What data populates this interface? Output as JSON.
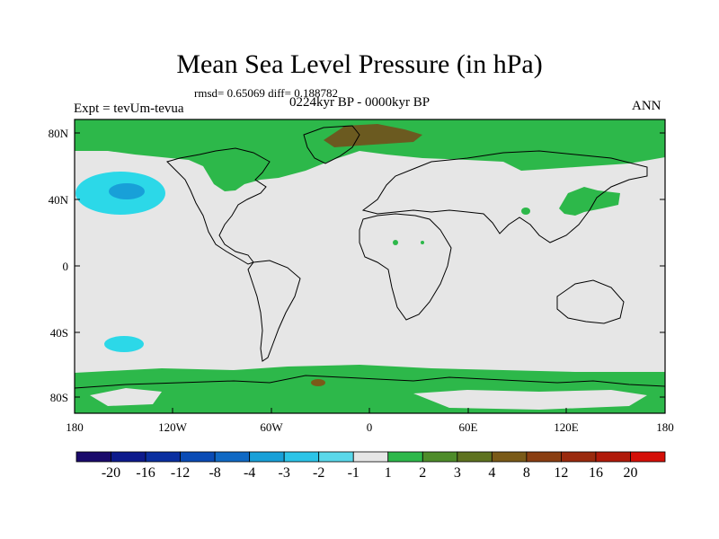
{
  "title": "Mean Sea Level Pressure (in hPa)",
  "stats": "rmsd= 0.65069 diff= 0.188782",
  "period": "0224kyr BP - 0000kyr BP",
  "experiment": "Expt = tevUm-tevua",
  "season": "ANN",
  "lat_ticks": [
    "80N",
    "40N",
    "0",
    "40S",
    "80S"
  ],
  "lon_ticks": [
    "180",
    "120W",
    "60W",
    "0",
    "60E",
    "120E",
    "180"
  ],
  "colorbar": {
    "labels": [
      "-20",
      "-16",
      "-12",
      "-8",
      "-4",
      "-3",
      "-2",
      "-1",
      "1",
      "2",
      "3",
      "4",
      "8",
      "12",
      "16",
      "20"
    ],
    "colors": [
      "#1a0a6b",
      "#0d1a8c",
      "#0a2fa0",
      "#0a4bb5",
      "#1069c4",
      "#18a0d8",
      "#2cc4e8",
      "#5ad8ea",
      "#e6e6e6",
      "#2db84a",
      "#4e8c2a",
      "#5e7220",
      "#7a5a18",
      "#8a3e12",
      "#9a2a0e",
      "#b01a0a",
      "#d40f08"
    ]
  },
  "colors": {
    "background_field": "#e6e6e6",
    "positive_1_2": "#2db84a",
    "positive_3_4": "#6b5a20",
    "negative_1_2": "#2cd8e8",
    "negative_2_3": "#18a0d8"
  }
}
